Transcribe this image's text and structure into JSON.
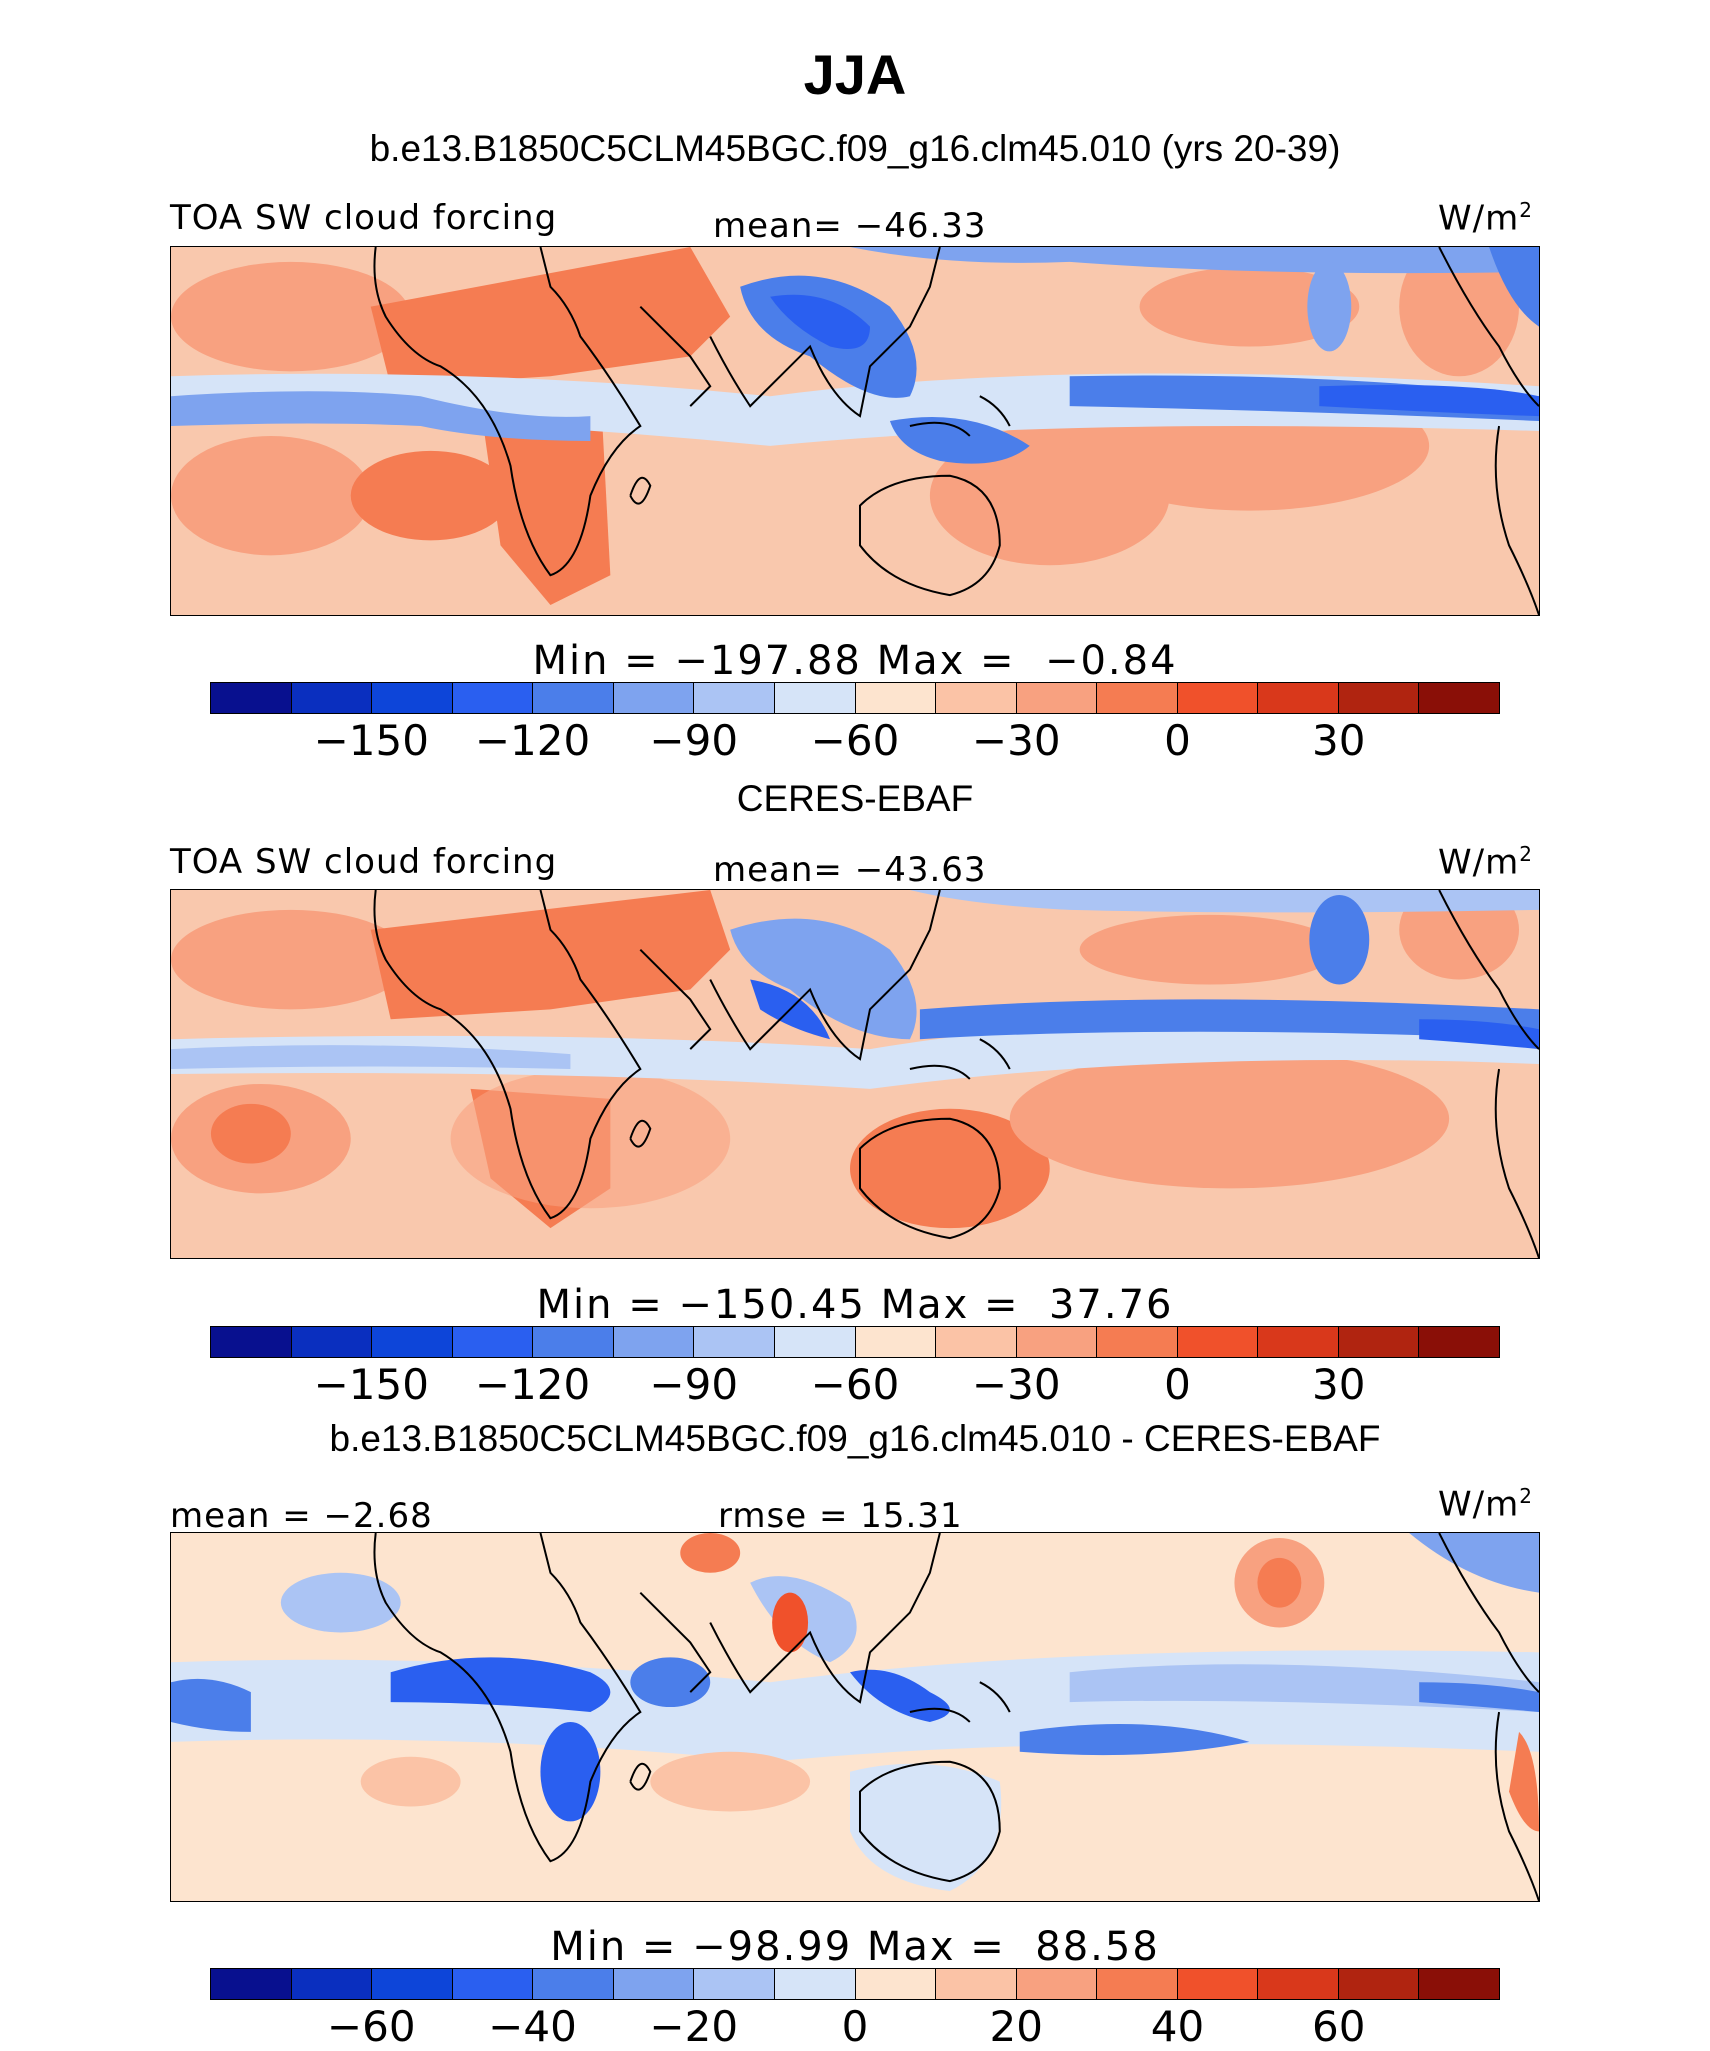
{
  "title": "JJA",
  "panels": [
    {
      "heading": "b.e13.B1850C5CLM45BGC.f09_g16.clm45.010 (yrs 20-39)",
      "left_label": "TOA SW cloud forcing",
      "center_label": "mean= −46.33",
      "units": "W/m",
      "units_sup": "2",
      "minmax": "Min = −197.88 Max =  −0.84",
      "colorbar": {
        "colors": [
          "#08108f",
          "#0a2fbf",
          "#0d45d9",
          "#2a5ff0",
          "#4b7eea",
          "#7ea3ef",
          "#abc4f4",
          "#d6e4f8",
          "#fde4cf",
          "#fbc3a6",
          "#f8a180",
          "#f57c52",
          "#f0512b",
          "#d9381b",
          "#b02410",
          "#8a0f07"
        ],
        "tick_labels": [
          "−150",
          "−120",
          "−90",
          "−60",
          "−30",
          "0",
          "30"
        ]
      }
    },
    {
      "heading": "CERES-EBAF",
      "left_label": "TOA SW cloud forcing",
      "center_label": "mean= −43.63",
      "units": "W/m",
      "units_sup": "2",
      "minmax": "Min = −150.45 Max =  37.76",
      "colorbar": {
        "colors": [
          "#08108f",
          "#0a2fbf",
          "#0d45d9",
          "#2a5ff0",
          "#4b7eea",
          "#7ea3ef",
          "#abc4f4",
          "#d6e4f8",
          "#fde4cf",
          "#fbc3a6",
          "#f8a180",
          "#f57c52",
          "#f0512b",
          "#d9381b",
          "#b02410",
          "#8a0f07"
        ],
        "tick_labels": [
          "−150",
          "−120",
          "−90",
          "−60",
          "−30",
          "0",
          "30"
        ]
      }
    },
    {
      "heading": "b.e13.B1850C5CLM45BGC.f09_g16.clm45.010 - CERES-EBAF",
      "left_label": "mean =  −2.68",
      "center_label": "rmse =  15.31",
      "units": "W/m",
      "units_sup": "2",
      "minmax": "Min = −98.99 Max =  88.58",
      "colorbar": {
        "colors": [
          "#08108f",
          "#0a2fbf",
          "#0d45d9",
          "#2a5ff0",
          "#4b7eea",
          "#7ea3ef",
          "#abc4f4",
          "#d6e4f8",
          "#fde4cf",
          "#fbc3a6",
          "#f8a180",
          "#f57c52",
          "#f0512b",
          "#d9381b",
          "#b02410",
          "#8a0f07"
        ],
        "tick_labels": [
          "−60",
          "−40",
          "−20",
          "0",
          "20",
          "40",
          "60"
        ]
      }
    }
  ]
}
